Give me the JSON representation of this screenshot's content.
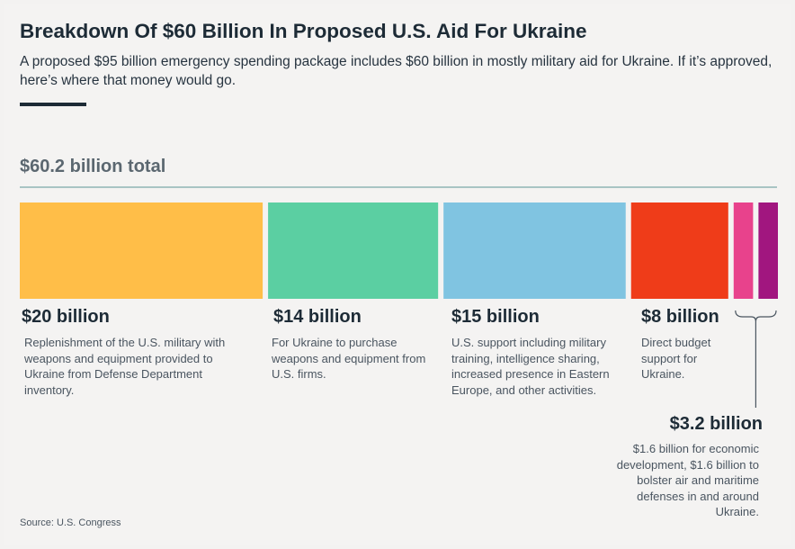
{
  "header": {
    "title": "Breakdown Of $60 Billion In Proposed U.S. Aid For Ukraine",
    "subtitle": "A proposed $95 billion emergency spending package includes $60 billion in mostly military aid for Ukraine. If it’s approved, here’s where that money would go."
  },
  "total_label": "$60.2 billion total",
  "source": "Source: U.S. Congress",
  "chart_data": {
    "type": "bar",
    "orientation": "horizontal-stacked",
    "title": "Breakdown Of $60 Billion In Proposed U.S. Aid For Ukraine",
    "total": 60.2,
    "unit": "billion USD",
    "categories": [
      "Replenishment of U.S. military stocks",
      "Weapons and equipment from U.S. firms",
      "U.S. support activities",
      "Direct budget support",
      "Economic development",
      "Air and maritime defenses"
    ],
    "values": [
      20,
      14,
      15,
      8,
      1.6,
      1.6
    ],
    "colors": [
      "#ffbe48",
      "#5bcfa2",
      "#80c4e1",
      "#ef3c19",
      "#e8428c",
      "#a1167f"
    ],
    "segments": [
      {
        "amount_label": "$20 billion",
        "description": "Replenishment of the U.S. military with weapons and equipment provided to Ukraine from Defense Department inventory."
      },
      {
        "amount_label": "$14 billion",
        "description": "For Ukraine to purchase weapons and equipment from U.S. firms."
      },
      {
        "amount_label": "$15 billion",
        "description": "U.S. support including military training, intelligence sharing, increased presence in Eastern Europe, and other activities."
      },
      {
        "amount_label": "$8 billion",
        "description": "Direct budget support for Ukraine."
      }
    ],
    "grouped_callout": {
      "amount_label": "$3.2 billion",
      "description": "$1.6 billion for economic development, $1.6 billion to bolster air and maritime defenses in and around Ukraine."
    }
  }
}
